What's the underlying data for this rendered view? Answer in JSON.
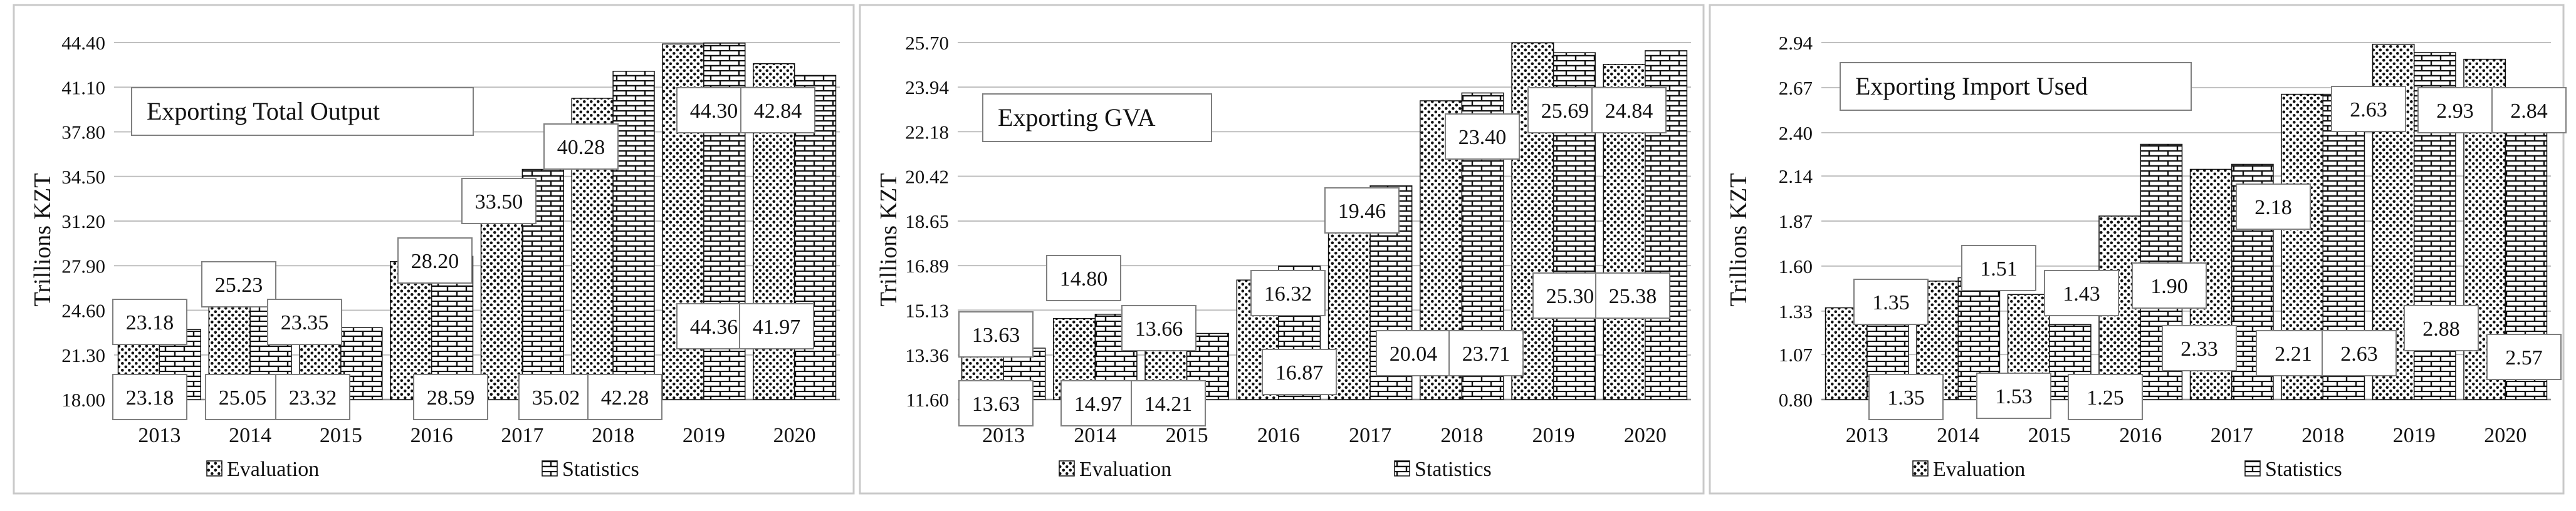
{
  "chart_data": [
    {
      "type": "bar",
      "title": "Exporting Total Output",
      "ylabel": "Trillions KZT",
      "categories": [
        "2013",
        "2014",
        "2015",
        "2016",
        "2017",
        "2018",
        "2019",
        "2020"
      ],
      "yticks": [
        "18.00",
        "21.30",
        "24.60",
        "27.90",
        "31.20",
        "34.50",
        "37.80",
        "41.10",
        "44.40"
      ],
      "ylim": [
        18.0,
        44.4
      ],
      "series": [
        {
          "name": "Evaluation",
          "values": [
            23.18,
            25.23,
            23.35,
            28.2,
            33.5,
            40.28,
            44.3,
            42.84
          ],
          "labels": [
            "23.18",
            "25.23",
            "23.35",
            "28.20",
            "33.50",
            "40.28",
            "44.30",
            "42.84"
          ]
        },
        {
          "name": "Statistics",
          "values": [
            23.18,
            25.05,
            23.32,
            28.59,
            35.02,
            42.28,
            44.36,
            41.97
          ],
          "labels": [
            "23.18",
            "25.05",
            "23.32",
            "28.59",
            "35.02",
            "42.28",
            "44.36",
            "41.97"
          ]
        }
      ]
    },
    {
      "type": "bar",
      "title": "Exporting GVA",
      "ylabel": "Trillions KZT",
      "categories": [
        "2013",
        "2014",
        "2015",
        "2016",
        "2017",
        "2018",
        "2019",
        "2020"
      ],
      "yticks": [
        "11.60",
        "13.36",
        "15.13",
        "16.89",
        "18.65",
        "20.42",
        "22.18",
        "23.94",
        "25.70"
      ],
      "ylim": [
        11.6,
        25.7
      ],
      "series": [
        {
          "name": "Evaluation",
          "values": [
            13.63,
            14.8,
            13.66,
            16.32,
            19.46,
            23.4,
            25.69,
            24.84
          ],
          "labels": [
            "13.63",
            "14.80",
            "13.66",
            "16.32",
            "19.46",
            "23.40",
            "25.69",
            "24.84"
          ]
        },
        {
          "name": "Statistics",
          "values": [
            13.63,
            14.97,
            14.21,
            16.87,
            20.04,
            23.71,
            25.3,
            25.38
          ],
          "labels": [
            "13.63",
            "14.97",
            "14.21",
            "16.87",
            "20.04",
            "23.71",
            "25.30",
            "25.38"
          ]
        }
      ]
    },
    {
      "type": "bar",
      "title": "Exporting Import Used",
      "ylabel": "Trillions KZT",
      "categories": [
        "2013",
        "2014",
        "2015",
        "2016",
        "2017",
        "2018",
        "2019",
        "2020"
      ],
      "yticks": [
        "0.80",
        "1.07",
        "1.33",
        "1.60",
        "1.87",
        "2.14",
        "2.40",
        "2.67",
        "2.94"
      ],
      "ylim": [
        0.8,
        2.94
      ],
      "series": [
        {
          "name": "Evaluation",
          "values": [
            1.35,
            1.51,
            1.43,
            1.9,
            2.18,
            2.63,
            2.93,
            2.84
          ],
          "labels": [
            "1.35",
            "1.51",
            "1.43",
            "1.90",
            "2.18",
            "2.63",
            "2.93",
            "2.84"
          ]
        },
        {
          "name": "Statistics",
          "values": [
            1.35,
            1.53,
            1.25,
            2.33,
            2.21,
            2.63,
            2.88,
            2.57
          ],
          "labels": [
            "1.35",
            "1.53",
            "1.25",
            "2.33",
            "2.21",
            "2.63",
            "2.88",
            "2.57"
          ]
        }
      ]
    }
  ]
}
